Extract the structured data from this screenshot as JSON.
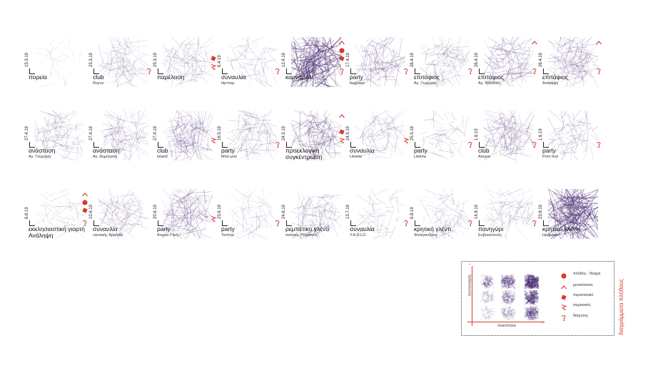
{
  "colors": {
    "accent": "#d83a2e",
    "scribble": "#4a2c73",
    "text": "#222222"
  },
  "events": [
    {
      "date": "15.3.19",
      "title": "πορεία",
      "sub": "",
      "density": 0.05,
      "intensity": 0.15,
      "marks": []
    },
    {
      "date": "23.3.19",
      "title": "club",
      "sub": "Royce",
      "density": 0.45,
      "intensity": 0.3,
      "marks": [
        "diochtos"
      ]
    },
    {
      "date": "25.3.19",
      "title": "παρέλαση",
      "sub": "",
      "density": 0.4,
      "intensity": 0.35,
      "marks": [
        "peristatiko",
        "simeiakos"
      ]
    },
    {
      "date": "6.4.19",
      "title": "συναυλία",
      "sub": "hip-hop",
      "density": 0.2,
      "intensity": 0.35,
      "marks": [
        "diochtos"
      ]
    },
    {
      "date": "12.4.19",
      "title": "καρναβάλι",
      "sub": "",
      "density": 1.0,
      "intensity": 0.85,
      "marks": [
        "metatopisi",
        "plithos",
        "peristatiko",
        "diochtos"
      ]
    },
    {
      "date": "17.4.19",
      "title": "party",
      "sub": "faggotaz",
      "density": 0.45,
      "intensity": 0.5,
      "marks": [
        "diochtos"
      ]
    },
    {
      "date": "26.4.19",
      "title": "επιτάφιος",
      "sub": "Αγ. Γεώργιος",
      "density": 0.4,
      "intensity": 0.35,
      "marks": [
        "diochtos"
      ]
    },
    {
      "date": "26.4.19",
      "title": "επιτάφιος",
      "sub": "Αγ. Νικόλαος",
      "density": 0.5,
      "intensity": 0.5,
      "marks": [
        "metatopisi",
        "diochtos"
      ]
    },
    {
      "date": "26.4.19",
      "title": "επιτάφιος",
      "sub": "Ανάληψη",
      "density": 0.55,
      "intensity": 0.45,
      "marks": [
        "metatopisi",
        "diochtos"
      ]
    },
    {
      "date": "27.4.19",
      "title": "ανάσταση",
      "sub": "Αγ. Γεώργιος",
      "density": 0.4,
      "intensity": 0.35,
      "marks": []
    },
    {
      "date": "27.4.19",
      "title": "ανάσταση",
      "sub": "Αγ. Δημήτριος",
      "density": 0.45,
      "intensity": 0.35,
      "marks": []
    },
    {
      "date": "27.4.19",
      "title": "club",
      "sub": "Island",
      "density": 0.6,
      "intensity": 0.45,
      "marks": [
        "simeiakos"
      ]
    },
    {
      "date": "16.5.19",
      "title": "party",
      "sub": "Μπε-μπε",
      "density": 0.4,
      "intensity": 0.4,
      "marks": [
        "diochtos"
      ]
    },
    {
      "date": "24.5.19",
      "title": "προεκλογική",
      "sub": "",
      "title2": "συγκέντρωση",
      "density": 0.6,
      "intensity": 0.55,
      "marks": [
        "metatopisi",
        "peristatiko",
        "simeiakos"
      ]
    },
    {
      "date": "24.5.19",
      "title": "συναυλία",
      "sub": "Liberta",
      "density": 0.3,
      "intensity": 0.4,
      "marks": [
        "simeiakos"
      ]
    },
    {
      "date": "25.5.19",
      "title": "party",
      "sub": "Liberta",
      "density": 0.15,
      "intensity": 0.4,
      "marks": [
        "diochtos"
      ]
    },
    {
      "date": "1.6.19",
      "title": "club",
      "sub": "Amaze",
      "density": 0.55,
      "intensity": 0.45,
      "marks": [
        "diochtos"
      ]
    },
    {
      "date": "1.6.19",
      "title": "party",
      "sub": "Porn fest",
      "density": 0.3,
      "intensity": 0.45,
      "marks": [
        "diochtos"
      ]
    },
    {
      "date": "6.6.19",
      "title": "εκκλησιαστική γιορτή",
      "sub": "",
      "title2": "Ανάληψη",
      "density": 0.15,
      "intensity": 0.25,
      "marks": [
        "metatopisi",
        "plithos",
        "peristatiko",
        "diochtos"
      ]
    },
    {
      "date": "10.6.19",
      "title": "συναυλία",
      "sub": "ναυτικής Βραδιάς",
      "density": 0.4,
      "intensity": 0.35,
      "marks": []
    },
    {
      "date": "20.6.19",
      "title": "party",
      "sub": "Ανιμαλ Party",
      "density": 0.6,
      "intensity": 0.5,
      "marks": [
        "simeiakos"
      ]
    },
    {
      "date": "23.6.19",
      "title": "party",
      "sub": "Techno",
      "density": 0.2,
      "intensity": 0.3,
      "marks": [
        "diochtos"
      ]
    },
    {
      "date": "24.6.19",
      "title": "ρεμπέτικο γλέντι",
      "sub": "παλαιός Πλάτανος",
      "density": 0.35,
      "intensity": 0.45,
      "marks": []
    },
    {
      "date": "13.7.19",
      "title": "συναυλία",
      "sub": "Y.A.D.LO",
      "density": 0.15,
      "intensity": 0.35,
      "marks": [
        "diochtos"
      ]
    },
    {
      "date": "6.8.19",
      "title": "κρητικό γλέντι",
      "sub": "Φολέγανδρος",
      "density": 0.3,
      "intensity": 0.3,
      "marks": [
        "diochtos"
      ]
    },
    {
      "date": "14.8.19",
      "title": "πανηγύρι",
      "sub": "Ευβοιούπολη",
      "density": 0.3,
      "intensity": 0.35,
      "marks": [
        "diochtos"
      ]
    },
    {
      "date": "23.8.19",
      "title": "κρητικό γλέντι",
      "sub": "Ηράκλειο",
      "density": 1.0,
      "intensity": 0.9,
      "marks": []
    }
  ],
  "legend": {
    "axis_x": "πυκνότητα",
    "axis_y": "συντονισμός",
    "title": "διαγράμματα πλήθους",
    "items": [
      {
        "key": "plithos",
        "label": "πλήθος - θέαμα",
        "icon": "filled-circle-icon"
      },
      {
        "key": "metatopisi",
        "label": "μετατόπιση",
        "icon": "chevron-up-icon"
      },
      {
        "key": "peristatiko",
        "label": "περιστατικό",
        "icon": "diamond-icon"
      },
      {
        "key": "simeiakos",
        "label": "σημειακός",
        "icon": "zigzag-arrow-icon"
      },
      {
        "key": "diochtos",
        "label": "διάχυτος",
        "icon": "curly-mark-icon"
      }
    ],
    "grid": [
      {
        "density": 0.25,
        "intensity": 0.6
      },
      {
        "density": 0.5,
        "intensity": 0.7
      },
      {
        "density": 0.9,
        "intensity": 0.9
      },
      {
        "density": 0.2,
        "intensity": 0.4
      },
      {
        "density": 0.45,
        "intensity": 0.5
      },
      {
        "density": 0.75,
        "intensity": 0.7
      },
      {
        "density": 0.15,
        "intensity": 0.3
      },
      {
        "density": 0.35,
        "intensity": 0.4
      },
      {
        "density": 0.6,
        "intensity": 0.6
      }
    ]
  }
}
